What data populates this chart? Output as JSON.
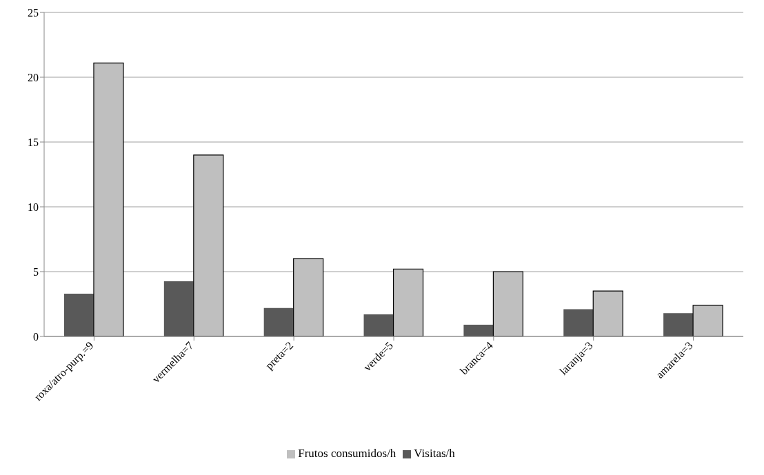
{
  "chart_data": {
    "type": "bar",
    "categories": [
      "roxa/atro-purp.=9",
      "vermelha=7",
      "preta=2",
      "verde=5",
      "branca=4",
      "laranja=3",
      "amarela=3"
    ],
    "series": [
      {
        "name": "Visitas/h",
        "color": "#595959",
        "values": [
          3.3,
          4.25,
          2.2,
          1.7,
          0.9,
          2.1,
          1.8
        ]
      },
      {
        "name": "Frutos consumidos/h",
        "color": "#bfbfbf",
        "values": [
          21.1,
          14.0,
          6.0,
          5.2,
          5.0,
          3.5,
          2.4
        ]
      }
    ],
    "ylim": [
      0,
      25
    ],
    "yticks": [
      0,
      5,
      10,
      15,
      20,
      25
    ],
    "grid": "y",
    "legend": "bottom"
  }
}
